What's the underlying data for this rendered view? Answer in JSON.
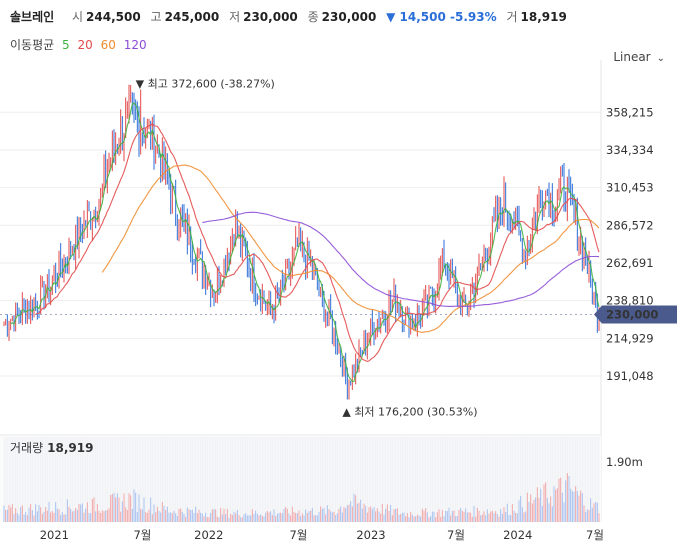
{
  "header": {
    "name": "솔브레인",
    "open_label": "시",
    "open": "244,500",
    "high_label": "고",
    "high": "245,000",
    "low_label": "저",
    "low": "230,000",
    "close_label": "종",
    "close": "230,000",
    "change": "▼ 14,500 -5.93%",
    "vol_label": "거",
    "vol": "18,919"
  },
  "ma": {
    "label": "이동평균",
    "items": [
      {
        "period": "5",
        "color": "#3fb33f"
      },
      {
        "period": "20",
        "color": "#e24a4a"
      },
      {
        "period": "60",
        "color": "#f08c2e"
      },
      {
        "period": "120",
        "color": "#8c4cd6"
      }
    ]
  },
  "scale_selector": "Linear",
  "volume": {
    "label": "거래량",
    "value": "18,919",
    "axis_tick": "1.90m"
  },
  "colors": {
    "up": "#e24a4a",
    "down": "#2a6ed8",
    "badge": "#4a5a8c"
  },
  "chart_data": {
    "type": "candlestick",
    "y_ticks": [
      "358,215",
      "334,334",
      "310,453",
      "286,572",
      "262,691",
      "238,810",
      "214,929",
      "191,048"
    ],
    "y_tick_values": [
      358215,
      334334,
      310453,
      286572,
      262691,
      238810,
      214929,
      191048
    ],
    "x_ticks": [
      "2021",
      "7월",
      "2022",
      "7월",
      "2023",
      "7월",
      "2024",
      "7월"
    ],
    "current_price": "230,000",
    "max_annotation": "▼ 최고 372,600 (-38.27%)",
    "min_annotation": "▲ 최저 176,200 (30.53%)",
    "max_value": 372600,
    "min_value": 176200,
    "price_path": [
      [
        0,
        225000
      ],
      [
        10,
        232000
      ],
      [
        20,
        238000
      ],
      [
        30,
        252000
      ],
      [
        40,
        272000
      ],
      [
        50,
        290000
      ],
      [
        58,
        305000
      ],
      [
        64,
        330000
      ],
      [
        70,
        345000
      ],
      [
        76,
        355000
      ],
      [
        82,
        350000
      ],
      [
        90,
        340000
      ],
      [
        94,
        330000
      ],
      [
        102,
        300000
      ],
      [
        110,
        280000
      ],
      [
        118,
        262000
      ],
      [
        126,
        245000
      ],
      [
        132,
        262000
      ],
      [
        138,
        285000
      ],
      [
        144,
        270000
      ],
      [
        152,
        248000
      ],
      [
        160,
        230000
      ],
      [
        168,
        248000
      ],
      [
        176,
        272000
      ],
      [
        184,
        262000
      ],
      [
        190,
        240000
      ],
      [
        196,
        225000
      ],
      [
        202,
        205000
      ],
      [
        206,
        186000
      ],
      [
        212,
        200000
      ],
      [
        220,
        220000
      ],
      [
        228,
        232000
      ],
      [
        236,
        240000
      ],
      [
        244,
        224000
      ],
      [
        252,
        232000
      ],
      [
        258,
        245000
      ],
      [
        264,
        265000
      ],
      [
        270,
        248000
      ],
      [
        276,
        232000
      ],
      [
        282,
        248000
      ],
      [
        288,
        265000
      ],
      [
        294,
        285000
      ],
      [
        300,
        300000
      ],
      [
        306,
        290000
      ],
      [
        312,
        270000
      ],
      [
        318,
        288000
      ],
      [
        324,
        310000
      ],
      [
        330,
        300000
      ],
      [
        336,
        312000
      ],
      [
        342,
        290000
      ],
      [
        348,
        270000
      ],
      [
        351,
        255000
      ],
      [
        355,
        235000
      ],
      [
        357,
        230000
      ]
    ],
    "volume_profile": [
      [
        0,
        0.2
      ],
      [
        60,
        0.3
      ],
      [
        76,
        0.4
      ],
      [
        100,
        0.2
      ],
      [
        140,
        0.15
      ],
      [
        200,
        0.2
      ],
      [
        206,
        0.35
      ],
      [
        240,
        0.15
      ],
      [
        300,
        0.2
      ],
      [
        338,
        0.6
      ],
      [
        352,
        0.3
      ],
      [
        357,
        0.25
      ]
    ]
  }
}
